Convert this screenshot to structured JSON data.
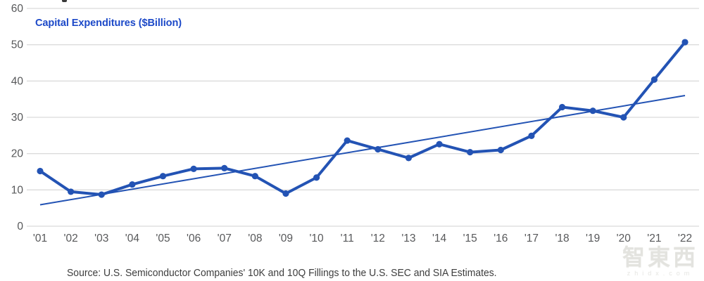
{
  "title": "Capital Expenditures ($Billion)",
  "source": "Source: U.S. Semiconductor Companies' 10K and 10Q Fillings to the U.S. SEC and SIA Estimates.",
  "watermark": {
    "cn": "智東西",
    "site": "zhidx.com"
  },
  "colors": {
    "line": "#2353b4",
    "trend": "#2353b4",
    "marker": "#2353b4",
    "title_text": "#1c49c8",
    "grid": "#dbdbdb",
    "axis_label": "#57585a",
    "source_text": "#3d3d3d",
    "watermark_text": "#e3e3df"
  },
  "chart_data": {
    "type": "line",
    "title": "Capital Expenditures ($Billion)",
    "x": [
      "'01",
      "'02",
      "'03",
      "'04",
      "'05",
      "'06",
      "'07",
      "'08",
      "'09",
      "'10",
      "'11",
      "'12",
      "'13",
      "'14",
      "'15",
      "'16",
      "'17",
      "'18",
      "'19",
      "'20",
      "'21",
      "'22"
    ],
    "series": [
      {
        "name": "Capital Expenditures ($Billion)",
        "values": [
          15.2,
          9.5,
          8.7,
          11.5,
          13.8,
          15.8,
          16.0,
          13.8,
          9.0,
          13.4,
          23.6,
          21.2,
          18.8,
          22.6,
          20.4,
          21.0,
          24.9,
          32.8,
          31.8,
          30.0,
          40.4,
          50.7
        ],
        "markers": true
      }
    ],
    "trendline": {
      "name": "linear-trend",
      "start_value": 5.9,
      "end_value": 36.0
    },
    "ylabel": "",
    "xlabel": "",
    "ylim": [
      0,
      60
    ],
    "yticks": [
      0,
      10,
      20,
      30,
      40,
      50,
      60
    ],
    "grid": "horizontal",
    "legend_position": "none"
  }
}
